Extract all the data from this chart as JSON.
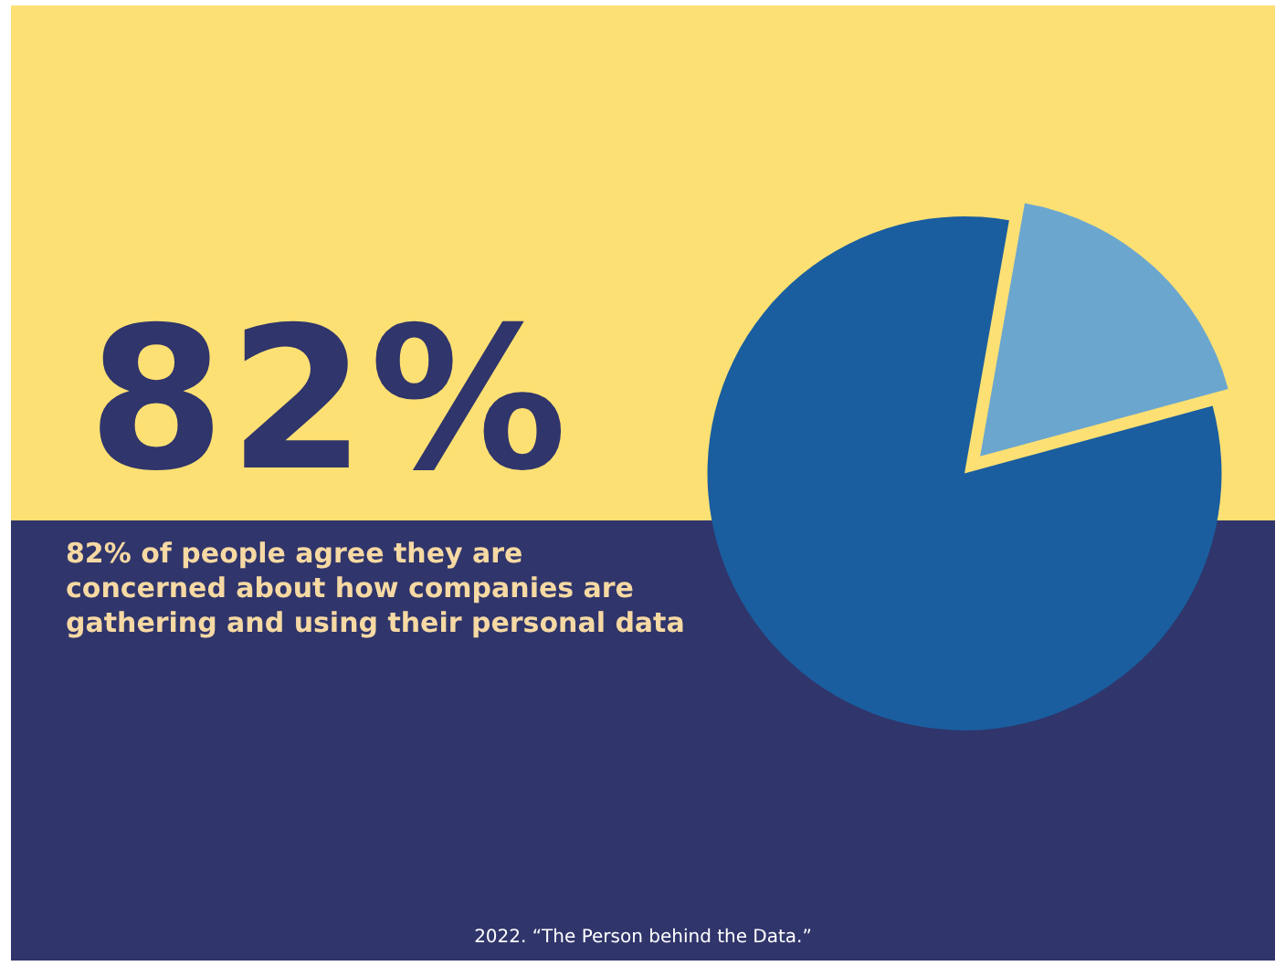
{
  "chart_data": {
    "type": "pie",
    "title": "82%",
    "subtitle": "82% of people agree they are concerned about how companies are gathering and using their personal data",
    "categories": [
      null,
      null
    ],
    "values": [
      18,
      82
    ],
    "colors": [
      "#6ba6cf",
      "#1a5e9f"
    ],
    "annotations": [
      "2022. “The Person behind the Data.”"
    ],
    "legend": false
  }
}
